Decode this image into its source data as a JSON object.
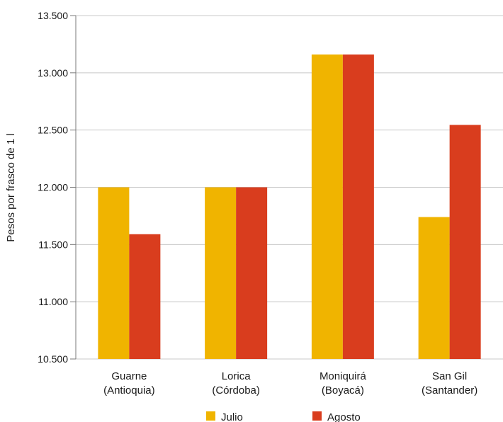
{
  "chart_data": {
    "type": "bar",
    "categories": [
      [
        "Guarne",
        "(Antioquia)"
      ],
      [
        "Lorica",
        "(Córdoba)"
      ],
      [
        "Moniquirá",
        "(Boyacá)"
      ],
      [
        "San Gil",
        "(Santander)"
      ]
    ],
    "series": [
      {
        "name": "Julio",
        "color": "#f0b400",
        "values": [
          12000,
          12000,
          13160,
          11740
        ]
      },
      {
        "name": "Agosto",
        "color": "#d93d1e",
        "values": [
          11590,
          12000,
          13160,
          12545
        ]
      }
    ],
    "ylabel": "Pesos por frasco de 1 l",
    "ylim": [
      10500,
      13500
    ],
    "yticks": [
      10500,
      11000,
      11500,
      12000,
      12500,
      13000,
      13500
    ],
    "ytick_labels": [
      "10.500",
      "11.000",
      "11.500",
      "12.000",
      "12.500",
      "13.000",
      "13.500"
    ],
    "grid": true,
    "legend_position": "bottom"
  }
}
